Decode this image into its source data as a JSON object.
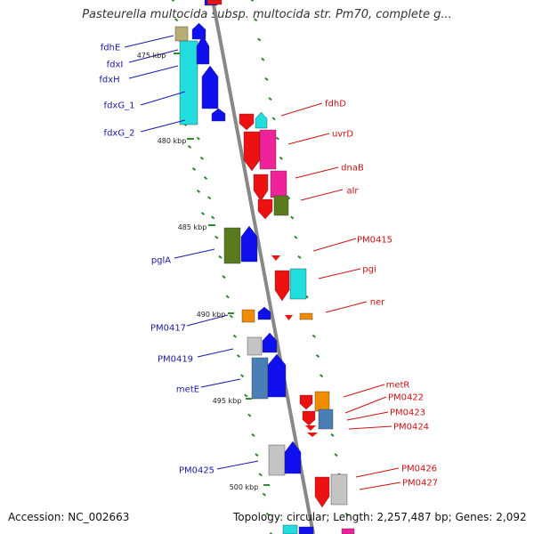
{
  "title": "Pasteurella multocida subsp. multocida str. Pm70, complete g...",
  "footer": {
    "accession": "Accession: NC_002663",
    "summary": "Topology: circular; Length: 2,257,487 bp; Genes: 2,092"
  },
  "colors": {
    "backbone": "#888888",
    "tick": "#2e8b2e",
    "left_label": "#1a1aa8",
    "right_label": "#cc1111",
    "blue": "#1010ee",
    "cyan": "#22dddd",
    "khaki": "#b8ad73",
    "red": "#ee1111",
    "magenta": "#ee2299",
    "olive": "#5a7a1e",
    "orange": "#f08c00",
    "gray": "#c4c4c4",
    "steelblue": "#4a7fb5",
    "white": "#ffffff"
  },
  "kbp_ticks": [
    "475 kbp",
    "480 kbp",
    "485 kbp",
    "490 kbp",
    "495 kbp",
    "500 kbp"
  ],
  "left_labels": [
    "fdhE",
    "fdxI",
    "fdxH",
    "fdxG_1",
    "fdxG_2",
    "pglA",
    "PM0417",
    "PM0419",
    "metE",
    "PM0425"
  ],
  "right_labels": [
    "fdhD",
    "uvrD",
    "dnaB",
    "alr",
    "PM0415",
    "pgi",
    "ner",
    "metR",
    "PM0422",
    "PM0423",
    "PM0424",
    "PM0426",
    "PM0427"
  ]
}
